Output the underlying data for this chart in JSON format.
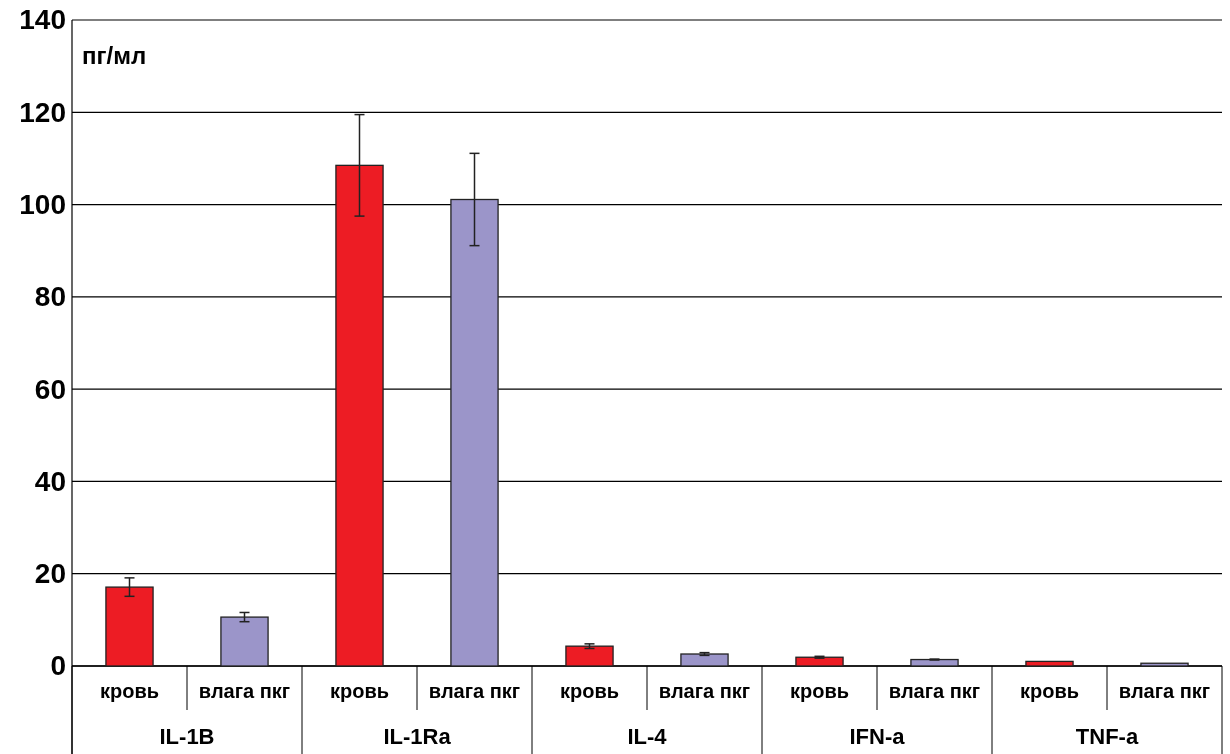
{
  "chart_data": {
    "type": "bar",
    "ylabel": "пг/мл",
    "categories": [
      "IL-1B",
      "IL-1Ra",
      "IL-4",
      "IFN-a",
      "TNF-a"
    ],
    "series": [
      {
        "name": "кровь",
        "color": "#ed1c24",
        "values": [
          17.1,
          108.5,
          4.3,
          1.9,
          1.0
        ],
        "errors": [
          2,
          11,
          0.5,
          0.2,
          null
        ]
      },
      {
        "name": "влага пкг",
        "color": "#9b95c9",
        "values": [
          10.6,
          101.1,
          2.6,
          1.4,
          0.6
        ],
        "errors": [
          1,
          10,
          0.3,
          0.1,
          null
        ]
      }
    ],
    "ylim": [
      0,
      140
    ],
    "yticks": [
      0,
      20,
      40,
      60,
      80,
      100,
      120,
      140
    ],
    "grid": "y"
  }
}
